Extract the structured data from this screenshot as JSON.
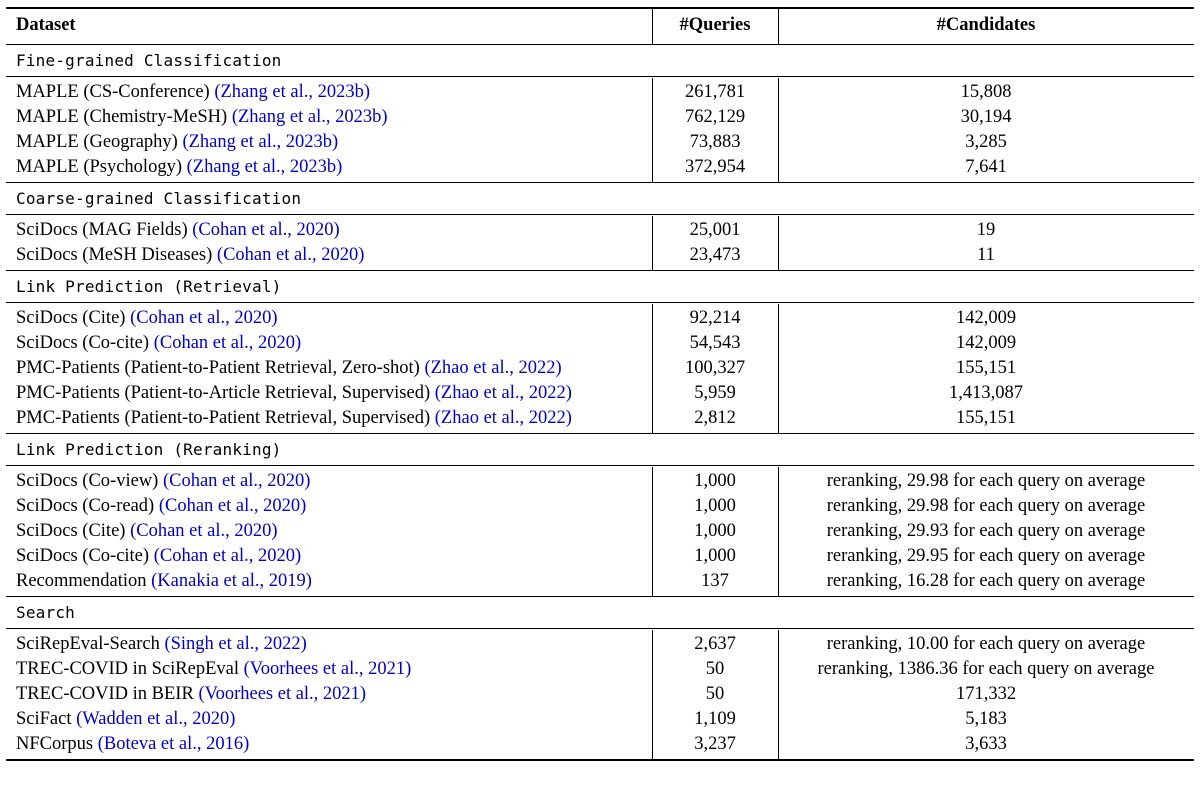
{
  "header": {
    "dataset": "Dataset",
    "queries": "#Queries",
    "candidates": "#Candidates"
  },
  "sections": [
    {
      "title": "Fine-grained Classification",
      "rows": [
        {
          "name": "MAPLE (CS-Conference) ",
          "cite": "(Zhang et al., 2023b)",
          "queries": "261,781",
          "candidates": "15,808"
        },
        {
          "name": "MAPLE (Chemistry-MeSH) ",
          "cite": "(Zhang et al., 2023b)",
          "queries": "762,129",
          "candidates": "30,194"
        },
        {
          "name": "MAPLE (Geography) ",
          "cite": "(Zhang et al., 2023b)",
          "queries": "73,883",
          "candidates": "3,285"
        },
        {
          "name": "MAPLE (Psychology) ",
          "cite": "(Zhang et al., 2023b)",
          "queries": "372,954",
          "candidates": "7,641"
        }
      ]
    },
    {
      "title": "Coarse-grained Classification",
      "rows": [
        {
          "name": "SciDocs (MAG Fields) ",
          "cite": "(Cohan et al., 2020)",
          "queries": "25,001",
          "candidates": "19"
        },
        {
          "name": "SciDocs (MeSH Diseases) ",
          "cite": "(Cohan et al., 2020)",
          "queries": "23,473",
          "candidates": "11"
        }
      ]
    },
    {
      "title": "Link Prediction (Retrieval)",
      "rows": [
        {
          "name": "SciDocs (Cite) ",
          "cite": "(Cohan et al., 2020)",
          "queries": "92,214",
          "candidates": "142,009"
        },
        {
          "name": "SciDocs (Co-cite) ",
          "cite": "(Cohan et al., 2020)",
          "queries": "54,543",
          "candidates": "142,009"
        },
        {
          "name": "PMC-Patients (Patient-to-Patient Retrieval, Zero-shot) ",
          "cite": "(Zhao et al., 2022)",
          "queries": "100,327",
          "candidates": "155,151"
        },
        {
          "name": "PMC-Patients (Patient-to-Article Retrieval, Supervised) ",
          "cite": "(Zhao et al., 2022)",
          "queries": "5,959",
          "candidates": "1,413,087"
        },
        {
          "name": "PMC-Patients (Patient-to-Patient Retrieval, Supervised) ",
          "cite": "(Zhao et al., 2022)",
          "queries": "2,812",
          "candidates": "155,151"
        }
      ]
    },
    {
      "title": "Link Prediction (Reranking)",
      "rows": [
        {
          "name": "SciDocs (Co-view) ",
          "cite": "(Cohan et al., 2020)",
          "queries": "1,000",
          "candidates": "reranking, 29.98 for each query on average"
        },
        {
          "name": "SciDocs (Co-read) ",
          "cite": "(Cohan et al., 2020)",
          "queries": "1,000",
          "candidates": "reranking, 29.98 for each query on average"
        },
        {
          "name": "SciDocs (Cite) ",
          "cite": "(Cohan et al., 2020)",
          "queries": "1,000",
          "candidates": "reranking, 29.93 for each query on average"
        },
        {
          "name": "SciDocs (Co-cite) ",
          "cite": "(Cohan et al., 2020)",
          "queries": "1,000",
          "candidates": "reranking, 29.95 for each query on average"
        },
        {
          "name": "Recommendation ",
          "cite": "(Kanakia et al., 2019)",
          "queries": "137",
          "candidates": "reranking, 16.28 for each query on average"
        }
      ]
    },
    {
      "title": "Search",
      "rows": [
        {
          "name": "SciRepEval-Search ",
          "cite": "(Singh et al., 2022)",
          "queries": "2,637",
          "candidates": "reranking, 10.00 for each query on average"
        },
        {
          "name": "TREC-COVID in SciRepEval ",
          "cite": "(Voorhees et al., 2021)",
          "queries": "50",
          "candidates": "reranking, 1386.36 for each query on average"
        },
        {
          "name": "TREC-COVID in BEIR ",
          "cite": "(Voorhees et al., 2021)",
          "queries": "50",
          "candidates": "171,332"
        },
        {
          "name": "SciFact ",
          "cite": "(Wadden et al., 2020)",
          "queries": "1,109",
          "candidates": "5,183"
        },
        {
          "name": "NFCorpus ",
          "cite": "(Boteva et al., 2016)",
          "queries": "3,237",
          "candidates": "3,633"
        }
      ]
    }
  ],
  "colors": {
    "citation": "#0000cc",
    "rule": "#000000"
  }
}
